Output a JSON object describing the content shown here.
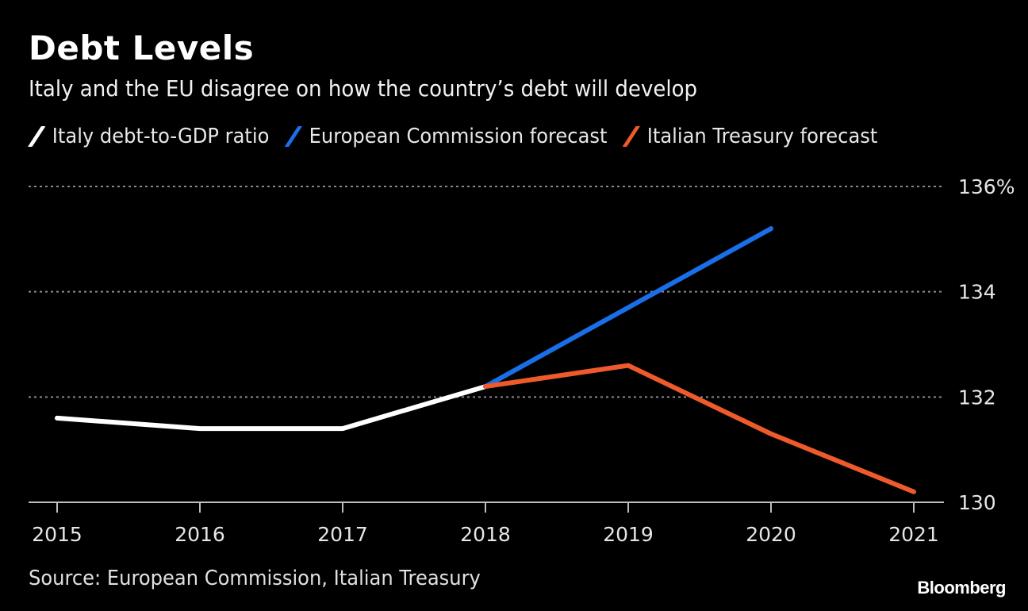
{
  "chart_data": {
    "type": "line",
    "title": "Debt Levels",
    "subtitle": "Italy and the EU disagree on how the country’s debt will develop",
    "xlabel": "",
    "ylabel": "",
    "x": [
      "2015",
      "2016",
      "2017",
      "2018",
      "2019",
      "2020",
      "2021"
    ],
    "ylim": [
      130,
      136
    ],
    "yticks": [
      {
        "value": 136,
        "label": "136%"
      },
      {
        "value": 134,
        "label": "134"
      },
      {
        "value": 132,
        "label": "132"
      },
      {
        "value": 130,
        "label": "130"
      }
    ],
    "grid": "horizontal-dotted",
    "legend_position": "top-left",
    "series": [
      {
        "name": "Italy debt-to-GDP ratio",
        "color": "#ffffff",
        "points": [
          [
            "2015",
            131.6
          ],
          [
            "2016",
            131.4
          ],
          [
            "2017",
            131.4
          ],
          [
            "2018",
            132.2
          ]
        ]
      },
      {
        "name": "European Commission forecast",
        "color": "#1a6fe8",
        "points": [
          [
            "2018",
            132.2
          ],
          [
            "2019",
            133.7
          ],
          [
            "2020",
            135.2
          ]
        ]
      },
      {
        "name": "Italian Treasury forecast",
        "color": "#ef5a2d",
        "points": [
          [
            "2018",
            132.2
          ],
          [
            "2019",
            132.6
          ],
          [
            "2020",
            131.3
          ],
          [
            "2021",
            130.2
          ]
        ]
      }
    ],
    "source": "Source: European Commission, Italian Treasury",
    "brand": "Bloomberg"
  }
}
